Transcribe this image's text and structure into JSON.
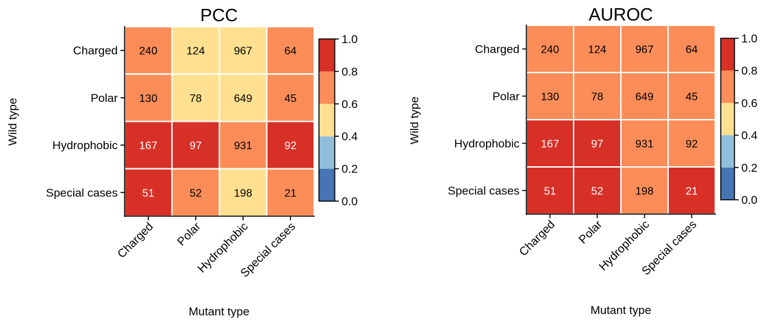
{
  "colorbar": {
    "bins": [
      {
        "from": 0.0,
        "to": 0.2,
        "color": "#4575b4"
      },
      {
        "from": 0.2,
        "to": 0.4,
        "color": "#91bfdb"
      },
      {
        "from": 0.4,
        "to": 0.6,
        "color": "#fee090"
      },
      {
        "from": 0.6,
        "to": 0.8,
        "color": "#fc8d59"
      },
      {
        "from": 0.8,
        "to": 1.0,
        "color": "#d73027"
      }
    ],
    "ticks": [
      "0.0",
      "0.2",
      "0.4",
      "0.6",
      "0.8",
      "1.0"
    ],
    "range": [
      0.0,
      1.0
    ]
  },
  "chart_data": [
    {
      "type": "heatmap",
      "title": "PCC",
      "xlabel": "Mutant type",
      "ylabel": "Wild type",
      "x_categories": [
        "Charged",
        "Polar",
        "Hydrophobic",
        "Special cases"
      ],
      "y_categories": [
        "Charged",
        "Polar",
        "Hydrophobic",
        "Special cases"
      ],
      "annotations": [
        [
          240,
          124,
          967,
          64
        ],
        [
          130,
          78,
          649,
          45
        ],
        [
          167,
          97,
          931,
          92
        ],
        [
          51,
          52,
          198,
          21
        ]
      ],
      "values_note": "Color metric estimated as colorbar bin midpoint",
      "values": [
        [
          0.7,
          0.5,
          0.5,
          0.7
        ],
        [
          0.7,
          0.5,
          0.5,
          0.7
        ],
        [
          0.9,
          0.9,
          0.7,
          0.9
        ],
        [
          0.9,
          0.7,
          0.5,
          0.7
        ]
      ],
      "colorbar_range": [
        0.0,
        1.0
      ]
    },
    {
      "type": "heatmap",
      "title": "AUROC",
      "xlabel": "Mutant type",
      "ylabel": "Wild type",
      "x_categories": [
        "Charged",
        "Polar",
        "Hydrophobic",
        "Special cases"
      ],
      "y_categories": [
        "Charged",
        "Polar",
        "Hydrophobic",
        "Special cases"
      ],
      "annotations": [
        [
          240,
          124,
          967,
          64
        ],
        [
          130,
          78,
          649,
          45
        ],
        [
          167,
          97,
          931,
          92
        ],
        [
          51,
          52,
          198,
          21
        ]
      ],
      "values_note": "Color metric estimated as colorbar bin midpoint",
      "values": [
        [
          0.7,
          0.7,
          0.7,
          0.7
        ],
        [
          0.7,
          0.7,
          0.7,
          0.7
        ],
        [
          0.9,
          0.9,
          0.7,
          0.7
        ],
        [
          0.9,
          0.9,
          0.7,
          0.9
        ]
      ],
      "colorbar_range": [
        0.0,
        1.0
      ]
    }
  ]
}
